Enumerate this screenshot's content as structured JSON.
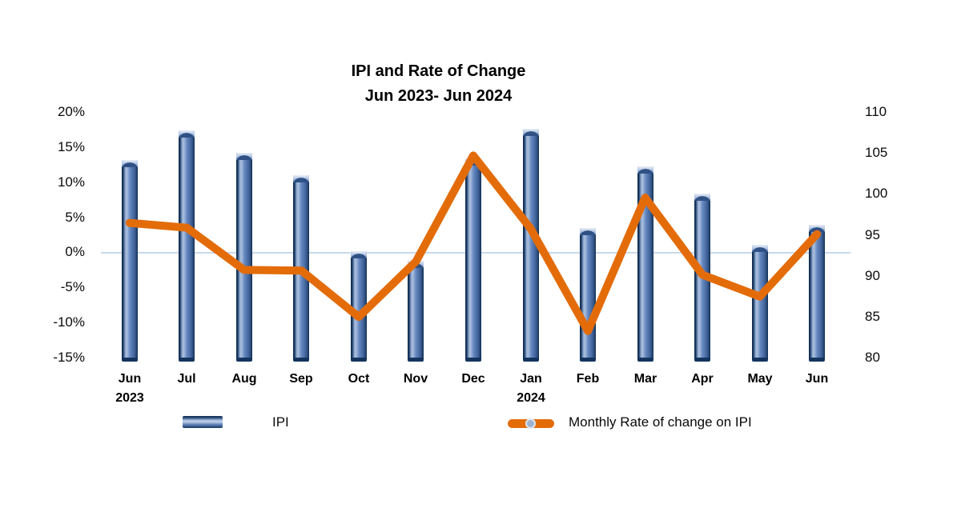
{
  "title": {
    "line1": "IPI and Rate of Change",
    "line2": "Jun 2023- Jun 2024"
  },
  "legend": {
    "ipi_label": "IPI",
    "rate_label": "Monthly Rate of change on IPI"
  },
  "axes": {
    "left_ticks": [
      "20%",
      "15%",
      "10%",
      "5%",
      "0%",
      "-5%",
      "-10%",
      "-15%"
    ],
    "right_ticks": [
      "110",
      "105",
      "100",
      "95",
      "90",
      "85",
      "80"
    ],
    "left_range": [
      20,
      -15
    ],
    "right_range": [
      110,
      80
    ]
  },
  "colors": {
    "bar_main": "#5d80ba",
    "bar_edge": "#17375e",
    "bar_highlight": "#adc0de",
    "line": "#e36c09",
    "gridline": "#c9d9ec",
    "legend_marker": "#9fb2cf",
    "text": "#000000"
  },
  "chart_data": {
    "type": "combo",
    "title": "IPI and Rate of Change Jun 2023- Jun 2024",
    "categories": [
      "Jun\n2023",
      "Jul",
      "Aug",
      "Sep",
      "Oct",
      "Nov",
      "Dec",
      "Jan\n2024",
      "Feb",
      "Mar",
      "Apr",
      "May",
      "Jun"
    ],
    "series": [
      {
        "name": "IPI",
        "type": "bar",
        "axis": "right",
        "values": [
          104.1,
          107.8,
          105.0,
          102.3,
          93.0,
          91.8,
          104.3,
          107.9,
          95.8,
          103.4,
          100.0,
          93.8,
          96.2
        ]
      },
      {
        "name": "Monthly Rate of change on IPI",
        "type": "line",
        "axis": "left",
        "values": [
          4.2,
          3.5,
          -2.5,
          -2.6,
          -9.2,
          -1.3,
          13.8,
          3.4,
          -11.2,
          7.8,
          -3.2,
          -6.3,
          2.6
        ]
      }
    ],
    "left_axis": {
      "unit": "%",
      "min": -15,
      "max": 20,
      "tick_step": 5
    },
    "right_axis": {
      "min": 80,
      "max": 110,
      "tick_step": 5
    },
    "grid": "zero-line-only",
    "legend_position": "bottom"
  }
}
